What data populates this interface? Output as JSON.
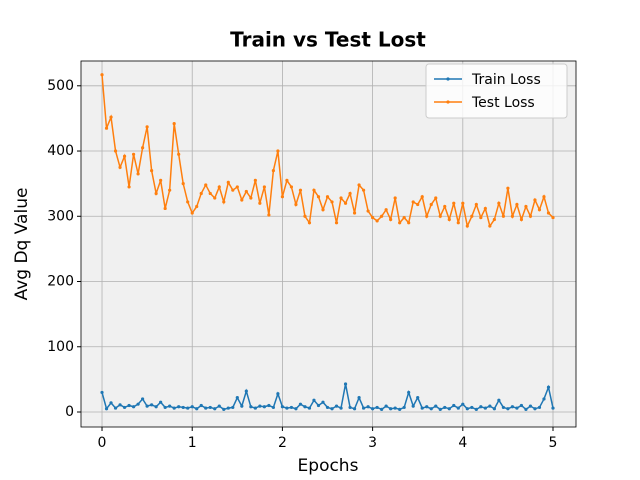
{
  "chart_data": {
    "type": "line",
    "title": "Train vs Test Lost",
    "xlabel": "Epochs",
    "ylabel": "Avg Dq Value",
    "x": [
      0,
      0.05,
      0.1,
      0.15,
      0.2,
      0.25,
      0.3,
      0.35,
      0.4,
      0.45,
      0.5,
      0.55,
      0.6,
      0.65,
      0.7,
      0.75,
      0.8,
      0.85,
      0.9,
      0.95,
      1,
      1.05,
      1.1,
      1.15,
      1.2,
      1.25,
      1.3,
      1.35,
      1.4,
      1.45,
      1.5,
      1.55,
      1.6,
      1.65,
      1.7,
      1.75,
      1.8,
      1.85,
      1.9,
      1.95,
      2,
      2.05,
      2.1,
      2.15,
      2.2,
      2.25,
      2.3,
      2.35,
      2.4,
      2.45,
      2.5,
      2.55,
      2.6,
      2.65,
      2.7,
      2.75,
      2.8,
      2.85,
      2.9,
      2.95,
      3,
      3.05,
      3.1,
      3.15,
      3.2,
      3.25,
      3.3,
      3.35,
      3.4,
      3.45,
      3.5,
      3.55,
      3.6,
      3.65,
      3.7,
      3.75,
      3.8,
      3.85,
      3.9,
      3.95,
      4,
      4.05,
      4.1,
      4.15,
      4.2,
      4.25,
      4.3,
      4.35,
      4.4,
      4.45,
      4.5,
      4.55,
      4.6,
      4.65,
      4.7,
      4.75,
      4.8,
      4.85,
      4.9,
      4.95,
      5
    ],
    "series": [
      {
        "name": "Train Loss",
        "color": "#1f77b4",
        "values": [
          30,
          5,
          14,
          6,
          11,
          7,
          10,
          8,
          12,
          20,
          9,
          11,
          8,
          15,
          7,
          9,
          6,
          8,
          7,
          6,
          8,
          5,
          10,
          6,
          7,
          5,
          9,
          4,
          6,
          7,
          22,
          9,
          32,
          8,
          6,
          9,
          8,
          10,
          7,
          28,
          8,
          6,
          7,
          5,
          12,
          8,
          6,
          18,
          10,
          15,
          7,
          5,
          9,
          6,
          43,
          7,
          5,
          22,
          6,
          8,
          5,
          7,
          4,
          9,
          5,
          6,
          4,
          7,
          30,
          9,
          22,
          6,
          8,
          5,
          9,
          4,
          7,
          5,
          10,
          6,
          12,
          5,
          7,
          4,
          8,
          6,
          9,
          5,
          18,
          7,
          5,
          8,
          6,
          10,
          4,
          9,
          5,
          7,
          20,
          38,
          6
        ],
        "marker": true
      },
      {
        "name": "Test Loss",
        "color": "#ff7f0e",
        "values": [
          517,
          435,
          452,
          400,
          375,
          392,
          345,
          395,
          365,
          405,
          437,
          370,
          335,
          355,
          312,
          340,
          442,
          395,
          350,
          322,
          305,
          315,
          335,
          348,
          335,
          328,
          345,
          322,
          352,
          340,
          345,
          325,
          338,
          328,
          355,
          320,
          345,
          302,
          370,
          400,
          330,
          355,
          345,
          318,
          340,
          300,
          290,
          340,
          330,
          310,
          330,
          322,
          290,
          328,
          320,
          335,
          305,
          348,
          340,
          308,
          298,
          293,
          300,
          310,
          295,
          328,
          290,
          298,
          290,
          322,
          318,
          330,
          300,
          318,
          328,
          300,
          315,
          295,
          320,
          290,
          320,
          285,
          300,
          318,
          298,
          312,
          285,
          295,
          320,
          300,
          343,
          300,
          318,
          295,
          315,
          300,
          325,
          310,
          330,
          305,
          298
        ],
        "marker": true
      }
    ],
    "xlim": [
      -0.233,
      5.255
    ],
    "ylim": [
      -23,
      538
    ],
    "xticks": [
      0,
      1,
      2,
      3,
      4,
      5
    ],
    "yticks": [
      0,
      100,
      200,
      300,
      400,
      500
    ],
    "grid": true,
    "legend": "upper right"
  }
}
